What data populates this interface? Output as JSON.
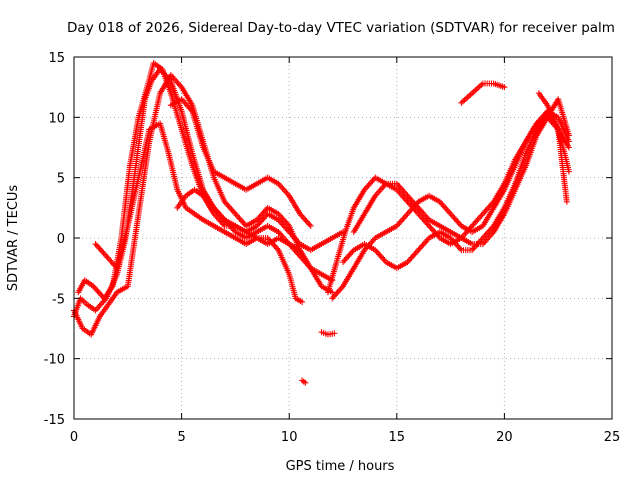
{
  "chart_data": {
    "type": "scatter",
    "title": "Day 018 of 2026, Sidereal Day-to-day VTEC variation (SDTVAR) for receiver palm",
    "xlabel": "GPS time / hours",
    "ylabel": "SDTVAR / TECUs",
    "xlim": [
      0,
      25
    ],
    "ylim": [
      -15,
      15
    ],
    "xticks": [
      0,
      5,
      10,
      15,
      20,
      25
    ],
    "yticks": [
      -15,
      -10,
      -5,
      0,
      5,
      10,
      15
    ],
    "xtick_labels": [
      "0",
      "5",
      "10",
      "15",
      "20",
      "25"
    ],
    "ytick_labels": [
      "-15",
      "-10",
      "-5",
      "0",
      "5",
      "10",
      "15"
    ],
    "grid": true,
    "marker": "plus",
    "series_color": "#ff0000",
    "series": [
      {
        "name": "track-1",
        "x": [
          0.0,
          0.3,
          0.6,
          1.0,
          1.5,
          2.0,
          2.4,
          2.8,
          3.1,
          3.3,
          3.6,
          4.0,
          4.5,
          5.0,
          5.5,
          6.0,
          6.5,
          7.0,
          7.5,
          8.0,
          8.5,
          9.0,
          9.5,
          10.0,
          10.3,
          10.6
        ],
        "y": [
          -6.5,
          -5.0,
          -5.5,
          -6.0,
          -5.0,
          -3.0,
          0.0,
          5.0,
          9.0,
          11.5,
          13.0,
          14.0,
          13.0,
          10.5,
          7.0,
          4.0,
          2.5,
          1.5,
          1.0,
          0.5,
          0.0,
          0.0,
          -1.0,
          -3.0,
          -5.0,
          -5.3
        ]
      },
      {
        "name": "track-2",
        "x": [
          0.2,
          0.5,
          0.9,
          1.4,
          1.8,
          2.2,
          2.6,
          3.0,
          3.4,
          3.7,
          4.1,
          4.5,
          5.0,
          5.5,
          6.0,
          6.5,
          7.0,
          7.5,
          8.0,
          8.5,
          9.0,
          9.5,
          10.0,
          10.5,
          11.0,
          11.5,
          12.0,
          12.5
        ],
        "y": [
          -4.5,
          -3.5,
          -4.0,
          -5.0,
          -4.0,
          0.0,
          6.0,
          10.0,
          12.5,
          14.5,
          14.0,
          12.0,
          9.0,
          6.0,
          3.5,
          2.0,
          1.0,
          1.0,
          0.5,
          1.0,
          2.0,
          1.5,
          0.5,
          -0.5,
          -1.0,
          -0.5,
          0.0,
          0.5
        ]
      },
      {
        "name": "track-3",
        "x": [
          0.0,
          0.4,
          0.8,
          1.2,
          1.6,
          2.0,
          2.5,
          3.0,
          3.5,
          4.0,
          4.5,
          5.0,
          5.5,
          6.0,
          6.5,
          7.0,
          7.5,
          8.0,
          8.5,
          9.0,
          9.5,
          10.0,
          10.5,
          11.0,
          11.5,
          12.0
        ],
        "y": [
          -6.0,
          -7.5,
          -8.0,
          -6.5,
          -5.5,
          -4.5,
          -4.0,
          2.0,
          8.0,
          12.0,
          13.5,
          12.5,
          11.0,
          8.0,
          5.0,
          3.0,
          2.0,
          1.0,
          1.5,
          2.5,
          2.0,
          1.0,
          -1.0,
          -2.5,
          -4.0,
          -4.5
        ]
      },
      {
        "name": "track-4",
        "x": [
          1.0,
          1.5,
          2.0,
          2.5,
          3.0,
          3.5,
          4.0,
          4.4,
          4.8,
          5.2,
          5.6,
          6.0,
          6.5,
          7.0,
          7.5,
          8.0,
          8.5,
          9.0,
          9.5,
          10.0,
          10.5
        ],
        "y": [
          -0.5,
          -1.5,
          -2.5,
          1.0,
          5.0,
          9.0,
          9.5,
          7.0,
          4.0,
          2.5,
          2.0,
          1.5,
          1.0,
          0.5,
          0.0,
          -0.5,
          0.0,
          -0.5,
          0.0,
          -0.5,
          -1.0
        ]
      },
      {
        "name": "track-5",
        "x": [
          4.5,
          5.0,
          5.5,
          6.0,
          6.5,
          7.0,
          7.5,
          8.0,
          8.5,
          9.0,
          9.5,
          10.0,
          10.5,
          11.0
        ],
        "y": [
          11.0,
          11.5,
          10.5,
          7.5,
          5.5,
          5.0,
          4.5,
          4.0,
          4.5,
          5.0,
          4.5,
          3.5,
          2.0,
          1.0
        ]
      },
      {
        "name": "track-6",
        "x": [
          4.8,
          5.2,
          5.6,
          6.0,
          6.5,
          7.0,
          7.5,
          8.0,
          8.5,
          9.0,
          9.5,
          10.0,
          10.5,
          11.0,
          11.5,
          12.0
        ],
        "y": [
          2.5,
          3.5,
          4.0,
          3.5,
          2.5,
          1.5,
          0.5,
          0.0,
          0.5,
          1.0,
          0.5,
          -0.5,
          -1.5,
          -2.5,
          -3.0,
          -3.5
        ]
      },
      {
        "name": "track-7",
        "x": [
          11.8,
          12.2,
          12.6,
          13.0,
          13.5,
          14.0,
          14.5,
          15.0,
          15.5,
          16.0,
          16.5,
          17.0,
          17.5,
          18.0,
          18.5,
          19.0,
          19.5,
          20.0,
          20.5,
          21.0,
          21.5,
          22.0,
          22.5,
          23.0
        ],
        "y": [
          -4.5,
          -2.0,
          0.5,
          2.5,
          4.0,
          5.0,
          4.5,
          4.0,
          3.0,
          2.0,
          1.0,
          0.0,
          -0.5,
          0.0,
          1.0,
          2.0,
          3.0,
          4.5,
          6.5,
          8.0,
          9.5,
          10.0,
          9.0,
          7.5
        ]
      },
      {
        "name": "track-8",
        "x": [
          12.0,
          12.5,
          13.0,
          13.5,
          14.0,
          14.5,
          15.0,
          15.5,
          16.0,
          16.5,
          17.0,
          17.5,
          18.0,
          18.5,
          19.0,
          19.5,
          20.0,
          20.5,
          21.0,
          21.5,
          22.0,
          22.5,
          22.9
        ],
        "y": [
          -5.0,
          -4.0,
          -2.5,
          -1.0,
          0.0,
          0.5,
          1.0,
          2.0,
          3.0,
          3.5,
          3.0,
          2.0,
          1.0,
          0.5,
          1.0,
          2.5,
          4.0,
          6.0,
          8.0,
          9.5,
          10.5,
          9.0,
          3.0
        ]
      },
      {
        "name": "track-9",
        "x": [
          12.5,
          13.0,
          13.5,
          14.0,
          14.5,
          15.0,
          15.5,
          16.0,
          16.5,
          17.0,
          17.5,
          18.0,
          18.5,
          19.0,
          19.5,
          20.0,
          20.5,
          21.0,
          21.5,
          22.0,
          22.5,
          23.0
        ],
        "y": [
          -2.0,
          -1.0,
          -0.5,
          -1.0,
          -2.0,
          -2.5,
          -2.0,
          -1.0,
          0.0,
          0.5,
          0.0,
          -1.0,
          -1.0,
          0.0,
          1.0,
          2.5,
          4.5,
          7.0,
          9.0,
          10.5,
          10.0,
          8.0
        ]
      },
      {
        "name": "track-10",
        "x": [
          13.0,
          13.5,
          14.0,
          14.5,
          15.0,
          15.5,
          16.0,
          16.5,
          17.0,
          17.5,
          18.0,
          18.5,
          19.0,
          19.5,
          20.0,
          20.5,
          21.0,
          21.5,
          22.0,
          22.5,
          23.0
        ],
        "y": [
          0.5,
          2.0,
          3.5,
          4.5,
          4.5,
          3.5,
          2.5,
          1.5,
          1.0,
          0.5,
          0.0,
          -0.5,
          -0.5,
          0.5,
          2.0,
          4.0,
          6.0,
          8.5,
          10.0,
          11.5,
          8.5
        ]
      },
      {
        "name": "track-11",
        "x": [
          18.0,
          18.5,
          19.0,
          19.5,
          20.0
        ],
        "y": [
          11.2,
          12.0,
          12.8,
          12.8,
          12.5
        ]
      },
      {
        "name": "track-12",
        "x": [
          21.6,
          22.0,
          22.4,
          22.8,
          23.0
        ],
        "y": [
          12.0,
          11.0,
          9.5,
          7.0,
          5.5
        ]
      },
      {
        "name": "track-13",
        "x": [
          10.6,
          10.75
        ],
        "y": [
          -11.8,
          -12.0
        ]
      },
      {
        "name": "track-14",
        "x": [
          11.5,
          11.8,
          12.1
        ],
        "y": [
          -7.8,
          -8.0,
          -7.9
        ]
      }
    ]
  }
}
